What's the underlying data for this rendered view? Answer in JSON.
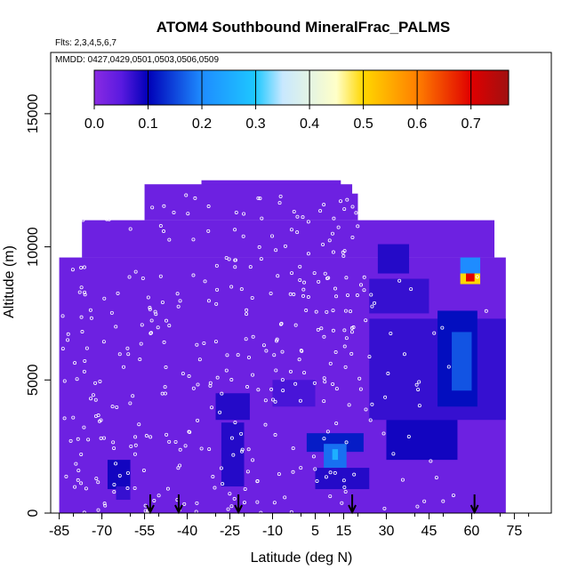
{
  "chart_data": {
    "type": "heatmap",
    "title": "ATOM4 Southbound MineralFrac_PALMS",
    "subtitle_flights": "Flts: 2,3,4,5,6,7",
    "subtitle_dates": "MMDD: 0427,0429,0501,0503,0506,0509",
    "xlabel": "Latitude (deg N)",
    "ylabel": "Altitude (m)",
    "xlim": [
      -88,
      88
    ],
    "ylim": [
      0,
      17300
    ],
    "x_ticks": [
      -85,
      -70,
      -55,
      -40,
      -25,
      -10,
      5,
      15,
      30,
      45,
      60,
      75
    ],
    "x_tick_labels": [
      "-85",
      "-70",
      "-55",
      "-40",
      "-25",
      "-10",
      "5",
      "15",
      "30",
      "45",
      "60",
      "75"
    ],
    "y_ticks": [
      0,
      5000,
      10000,
      15000
    ],
    "y_tick_labels": [
      "0",
      "5000",
      "10000",
      "15000"
    ],
    "colorbar": {
      "range": [
        0,
        0.77
      ],
      "ticks": [
        0.0,
        0.1,
        0.2,
        0.3,
        0.4,
        0.5,
        0.6,
        0.7
      ],
      "tick_labels": [
        "0.0",
        "0.1",
        "0.2",
        "0.3",
        "0.4",
        "0.5",
        "0.6",
        "0.7"
      ]
    },
    "field_regions": [
      {
        "lat": [
          -85,
          72
        ],
        "alt": [
          0,
          9600
        ],
        "value": 0.03
      },
      {
        "lat": [
          -77,
          68
        ],
        "alt": [
          9600,
          11000
        ],
        "value": 0.03
      },
      {
        "lat": [
          -50,
          20
        ],
        "alt": [
          11000,
          12000
        ],
        "value": 0.03
      },
      {
        "lat": [
          -35,
          14
        ],
        "alt": [
          12000,
          12500
        ],
        "value": 0.03
      },
      {
        "lat": [
          -55,
          18
        ],
        "alt": [
          11000,
          12350
        ],
        "value": 0.03
      },
      {
        "lat": [
          27,
          38
        ],
        "alt": [
          9000,
          10100
        ],
        "value": 0.08
      },
      {
        "lat": [
          24,
          45
        ],
        "alt": [
          7500,
          8800
        ],
        "value": 0.07
      },
      {
        "lat": [
          24,
          72
        ],
        "alt": [
          3500,
          7300
        ],
        "value": 0.07
      },
      {
        "lat": [
          30,
          55
        ],
        "alt": [
          2000,
          3500
        ],
        "value": 0.09
      },
      {
        "lat": [
          48,
          62
        ],
        "alt": [
          4000,
          7600
        ],
        "value": 0.11
      },
      {
        "lat": [
          53,
          60
        ],
        "alt": [
          4600,
          6800
        ],
        "value": 0.16
      },
      {
        "lat": [
          -30,
          -18
        ],
        "alt": [
          3500,
          4500
        ],
        "value": 0.08
      },
      {
        "lat": [
          -28,
          -20
        ],
        "alt": [
          1000,
          3400
        ],
        "value": 0.08
      },
      {
        "lat": [
          -10,
          5
        ],
        "alt": [
          4000,
          5000
        ],
        "value": 0.06
      },
      {
        "lat": [
          2,
          22
        ],
        "alt": [
          2300,
          3000
        ],
        "value": 0.12
      },
      {
        "lat": [
          8,
          16
        ],
        "alt": [
          1700,
          2600
        ],
        "value": 0.18
      },
      {
        "lat": [
          11,
          13
        ],
        "alt": [
          2000,
          2400
        ],
        "value": 0.26
      },
      {
        "lat": [
          5,
          24
        ],
        "alt": [
          900,
          1700
        ],
        "value": 0.08
      },
      {
        "lat": [
          -68,
          -60
        ],
        "alt": [
          900,
          2000
        ],
        "value": 0.09
      },
      {
        "lat": [
          -65,
          -60
        ],
        "alt": [
          500,
          1000
        ],
        "value": 0.07
      },
      {
        "lat": [
          56,
          63
        ],
        "alt": [
          9000,
          9600
        ],
        "value": 0.2
      },
      {
        "lat": [
          56,
          63
        ],
        "alt": [
          8600,
          9000
        ],
        "value": 0.5
      },
      {
        "lat": [
          58,
          61
        ],
        "alt": [
          8700,
          9000
        ],
        "value": 0.7
      }
    ],
    "flight_markers_lat": [
      -53,
      -43,
      -22,
      18,
      61
    ]
  }
}
